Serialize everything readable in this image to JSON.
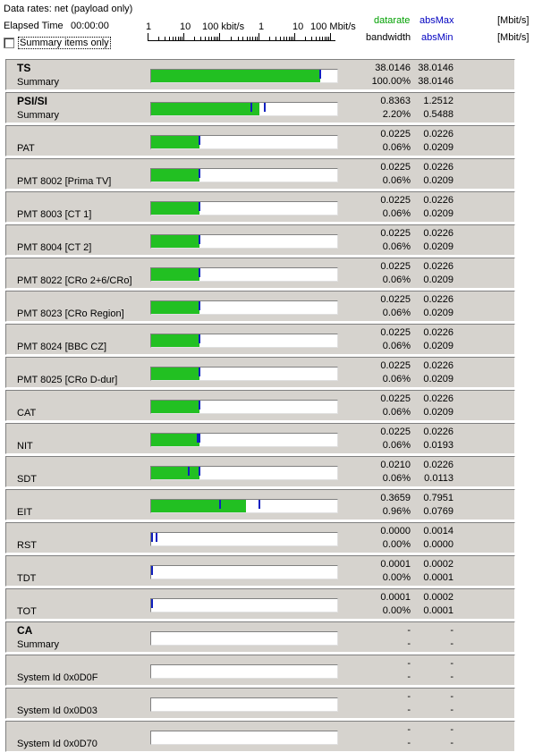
{
  "header": {
    "data_rates": "Data rates: net (payload only)",
    "elapsed_label": "Elapsed Time",
    "elapsed_value": "00:00:00",
    "summary_only_label": "Summary items only",
    "scale_labels": [
      "1",
      "10",
      "100 kbit/s",
      "1",
      "10",
      "100 Mbit/s"
    ],
    "datarate_label": "datarate",
    "absmax_label": "absMax",
    "bandwidth_label": "bandwidth",
    "absmin_label": "absMin",
    "unit1": "[Mbit/s]",
    "unit2": "[Mbit/s]"
  },
  "colors": {
    "bar_fill": "#22c022",
    "marker": "#1020c0",
    "datarate_label": "#00a000",
    "absmax_label": "#0000c0"
  },
  "rows": [
    {
      "title": "TS",
      "sub": "Summary",
      "datarate": "38.0146",
      "absmax": "38.0146",
      "bandwidth": "100.00%",
      "absmin": "38.0146",
      "fill": 0.91,
      "marks": [
        0.91
      ]
    },
    {
      "title": "PSI/SI",
      "sub": "Summary",
      "datarate": "0.8363",
      "absmax": "1.2512",
      "bandwidth": "2.20%",
      "absmin": "0.5488",
      "fill": 0.58,
      "marks": [
        0.54,
        0.61
      ]
    },
    {
      "title": "",
      "sub": "PAT",
      "datarate": "0.0225",
      "absmax": "0.0226",
      "bandwidth": "0.06%",
      "absmin": "0.0209",
      "fill": 0.26,
      "marks": [
        0.26
      ]
    },
    {
      "title": "",
      "sub": "PMT 8002 [Prima TV]",
      "datarate": "0.0225",
      "absmax": "0.0226",
      "bandwidth": "0.06%",
      "absmin": "0.0209",
      "fill": 0.26,
      "marks": [
        0.26
      ]
    },
    {
      "title": "",
      "sub": "PMT 8003 [CT 1]",
      "datarate": "0.0225",
      "absmax": "0.0226",
      "bandwidth": "0.06%",
      "absmin": "0.0209",
      "fill": 0.26,
      "marks": [
        0.26
      ]
    },
    {
      "title": "",
      "sub": "PMT 8004 [CT 2]",
      "datarate": "0.0225",
      "absmax": "0.0226",
      "bandwidth": "0.06%",
      "absmin": "0.0209",
      "fill": 0.26,
      "marks": [
        0.26
      ]
    },
    {
      "title": "",
      "sub": "PMT 8022 [CRo 2+6/CRo]",
      "datarate": "0.0225",
      "absmax": "0.0226",
      "bandwidth": "0.06%",
      "absmin": "0.0209",
      "fill": 0.26,
      "marks": [
        0.26
      ]
    },
    {
      "title": "",
      "sub": "PMT 8023 [CRo Region]",
      "datarate": "0.0225",
      "absmax": "0.0226",
      "bandwidth": "0.06%",
      "absmin": "0.0209",
      "fill": 0.26,
      "marks": [
        0.26
      ]
    },
    {
      "title": "",
      "sub": "PMT 8024 [BBC CZ]",
      "datarate": "0.0225",
      "absmax": "0.0226",
      "bandwidth": "0.06%",
      "absmin": "0.0209",
      "fill": 0.26,
      "marks": [
        0.26
      ]
    },
    {
      "title": "",
      "sub": "PMT 8025 [CRo D-dur]",
      "datarate": "0.0225",
      "absmax": "0.0226",
      "bandwidth": "0.06%",
      "absmin": "0.0209",
      "fill": 0.26,
      "marks": [
        0.26
      ]
    },
    {
      "title": "",
      "sub": "CAT",
      "datarate": "0.0225",
      "absmax": "0.0226",
      "bandwidth": "0.06%",
      "absmin": "0.0209",
      "fill": 0.26,
      "marks": [
        0.26
      ]
    },
    {
      "title": "",
      "sub": "NIT",
      "datarate": "0.0225",
      "absmax": "0.0226",
      "bandwidth": "0.06%",
      "absmin": "0.0193",
      "fill": 0.26,
      "marks": [
        0.25,
        0.26
      ]
    },
    {
      "title": "",
      "sub": "SDT",
      "datarate": "0.0210",
      "absmax": "0.0226",
      "bandwidth": "0.06%",
      "absmin": "0.0113",
      "fill": 0.26,
      "marks": [
        0.2,
        0.26
      ]
    },
    {
      "title": "",
      "sub": "EIT",
      "datarate": "0.3659",
      "absmax": "0.7951",
      "bandwidth": "0.96%",
      "absmin": "0.0769",
      "fill": 0.51,
      "marks": [
        0.37,
        0.58
      ]
    },
    {
      "title": "",
      "sub": "RST",
      "datarate": "0.0000",
      "absmax": "0.0014",
      "bandwidth": "0.00%",
      "absmin": "0.0000",
      "fill": 0.0,
      "marks": [
        0.0,
        0.03
      ]
    },
    {
      "title": "",
      "sub": "TDT",
      "datarate": "0.0001",
      "absmax": "0.0002",
      "bandwidth": "0.00%",
      "absmin": "0.0001",
      "fill": 0.0,
      "marks": [
        0.0
      ]
    },
    {
      "title": "",
      "sub": "TOT",
      "datarate": "0.0001",
      "absmax": "0.0002",
      "bandwidth": "0.00%",
      "absmin": "0.0001",
      "fill": 0.0,
      "marks": [
        0.0
      ]
    },
    {
      "title": "CA",
      "sub": "Summary",
      "datarate": "-",
      "absmax": "-",
      "bandwidth": "-",
      "absmin": "-",
      "fill": 0.0,
      "marks": []
    },
    {
      "title": "",
      "sub": "System Id 0x0D0F",
      "datarate": "-",
      "absmax": "-",
      "bandwidth": "-",
      "absmin": "-",
      "fill": 0.0,
      "marks": []
    },
    {
      "title": "",
      "sub": "System Id 0x0D03",
      "datarate": "-",
      "absmax": "-",
      "bandwidth": "-",
      "absmin": "-",
      "fill": 0.0,
      "marks": []
    },
    {
      "title": "",
      "sub": "System Id 0x0D70",
      "datarate": "-",
      "absmax": "-",
      "bandwidth": "-",
      "absmin": "-",
      "fill": 0.0,
      "marks": []
    }
  ]
}
